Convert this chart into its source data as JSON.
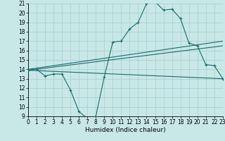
{
  "xlabel": "Humidex (Indice chaleur)",
  "xlim": [
    0,
    23
  ],
  "ylim": [
    9,
    21
  ],
  "yticks": [
    9,
    10,
    11,
    12,
    13,
    14,
    15,
    16,
    17,
    18,
    19,
    20,
    21
  ],
  "xticks": [
    0,
    1,
    2,
    3,
    4,
    5,
    6,
    7,
    8,
    9,
    10,
    11,
    12,
    13,
    14,
    15,
    16,
    17,
    18,
    19,
    20,
    21,
    22,
    23
  ],
  "bg_color": "#c8e8e8",
  "line_color": "#1a6b6b",
  "grid_color": "#a8cccc",
  "line1_x": [
    0,
    1,
    2,
    3,
    4,
    5,
    6,
    7,
    8,
    9,
    10,
    11,
    12,
    13,
    14,
    15,
    16,
    17,
    18,
    19,
    20,
    21,
    22,
    23
  ],
  "line1_y": [
    13.9,
    14.0,
    13.3,
    13.5,
    13.5,
    11.8,
    9.5,
    8.8,
    9.0,
    13.2,
    16.9,
    17.0,
    18.3,
    19.0,
    21.0,
    21.2,
    20.3,
    20.4,
    19.4,
    16.8,
    16.5,
    14.5,
    14.4,
    13.0
  ],
  "line2_x": [
    0,
    23
  ],
  "line2_y": [
    13.9,
    13.0
  ],
  "line3_x": [
    0,
    23
  ],
  "line3_y": [
    14.0,
    17.0
  ],
  "line4_x": [
    0,
    23
  ],
  "line4_y": [
    13.9,
    16.5
  ],
  "xlabel_fontsize": 6.5,
  "tick_fontsize": 5.5,
  "linewidth": 0.8,
  "marker_size": 3
}
